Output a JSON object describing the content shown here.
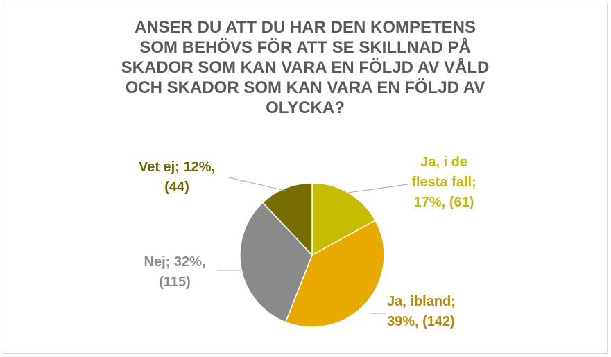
{
  "chart_data": {
    "type": "pie",
    "title": "ANSER DU ATT DU HAR DEN KOMPETENS SOM BEHÖVS FÖR ATT SE SKILLNAD PÅ SKADOR SOM KAN VARA EN FÖLJD AV VÅLD OCH SKADOR SOM KAN VARA EN FÖLJD AV OLYCKA?",
    "values": [
      17,
      39,
      32,
      12
    ],
    "value_labels": [
      "Ja, i de flesta fall; 17%, (61)",
      "Ja, ibland; 39%, (142)",
      "Nej; 32%, (115)",
      "Vet ej; 12%, (44)"
    ],
    "colors": [
      "#c6bc00",
      "#e8a900",
      "#8a8a8a",
      "#786d00"
    ],
    "label_colors": [
      "#c2b900",
      "#b8860b",
      "#8a8a8a",
      "#6e6300"
    ]
  }
}
